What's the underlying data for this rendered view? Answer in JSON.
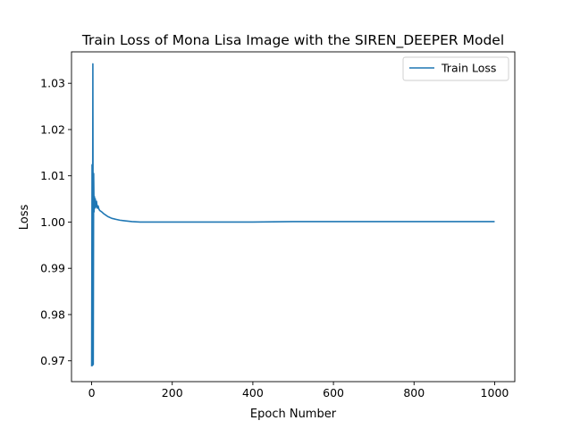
{
  "chart_data": {
    "type": "line",
    "title": "Train Loss of Mona Lisa Image with the SIREN_DEEPER Model",
    "xlabel": "Epoch Number",
    "ylabel": "Loss",
    "xlim": [
      -50,
      1050
    ],
    "ylim": [
      0.9655,
      1.0368
    ],
    "xticks": [
      0,
      200,
      400,
      600,
      800,
      1000
    ],
    "yticks": [
      0.97,
      0.98,
      0.99,
      1.0,
      1.01,
      1.02,
      1.03
    ],
    "xtick_labels": [
      "0",
      "200",
      "400",
      "600",
      "800",
      "1000"
    ],
    "ytick_labels": [
      "0.97",
      "0.98",
      "0.99",
      "1.00",
      "1.01",
      "1.02",
      "1.03"
    ],
    "legend_position": "top-right",
    "grid": false,
    "series": [
      {
        "name": "Train Loss",
        "color": "#1f77b4",
        "x": [
          0,
          1,
          2,
          3,
          4,
          5,
          6,
          7,
          8,
          9,
          10,
          12,
          14,
          16,
          18,
          20,
          25,
          30,
          35,
          40,
          50,
          60,
          70,
          80,
          90,
          100,
          120,
          150,
          200,
          300,
          400,
          500,
          600,
          700,
          800,
          900,
          1000
        ],
        "y": [
          0.9688,
          1.0124,
          0.969,
          1.0342,
          0.9692,
          1.0105,
          1.0022,
          1.0055,
          1.003,
          1.005,
          1.0032,
          1.0045,
          1.003,
          1.0035,
          1.0028,
          1.0025,
          1.0022,
          1.0018,
          1.0015,
          1.0012,
          1.0008,
          1.0006,
          1.0004,
          1.0003,
          1.0002,
          1.0001,
          1.0,
          1.0,
          1.0,
          1.0,
          1.0,
          1.0001,
          1.0001,
          1.0001,
          1.0001,
          1.0001,
          1.0001
        ]
      }
    ]
  }
}
